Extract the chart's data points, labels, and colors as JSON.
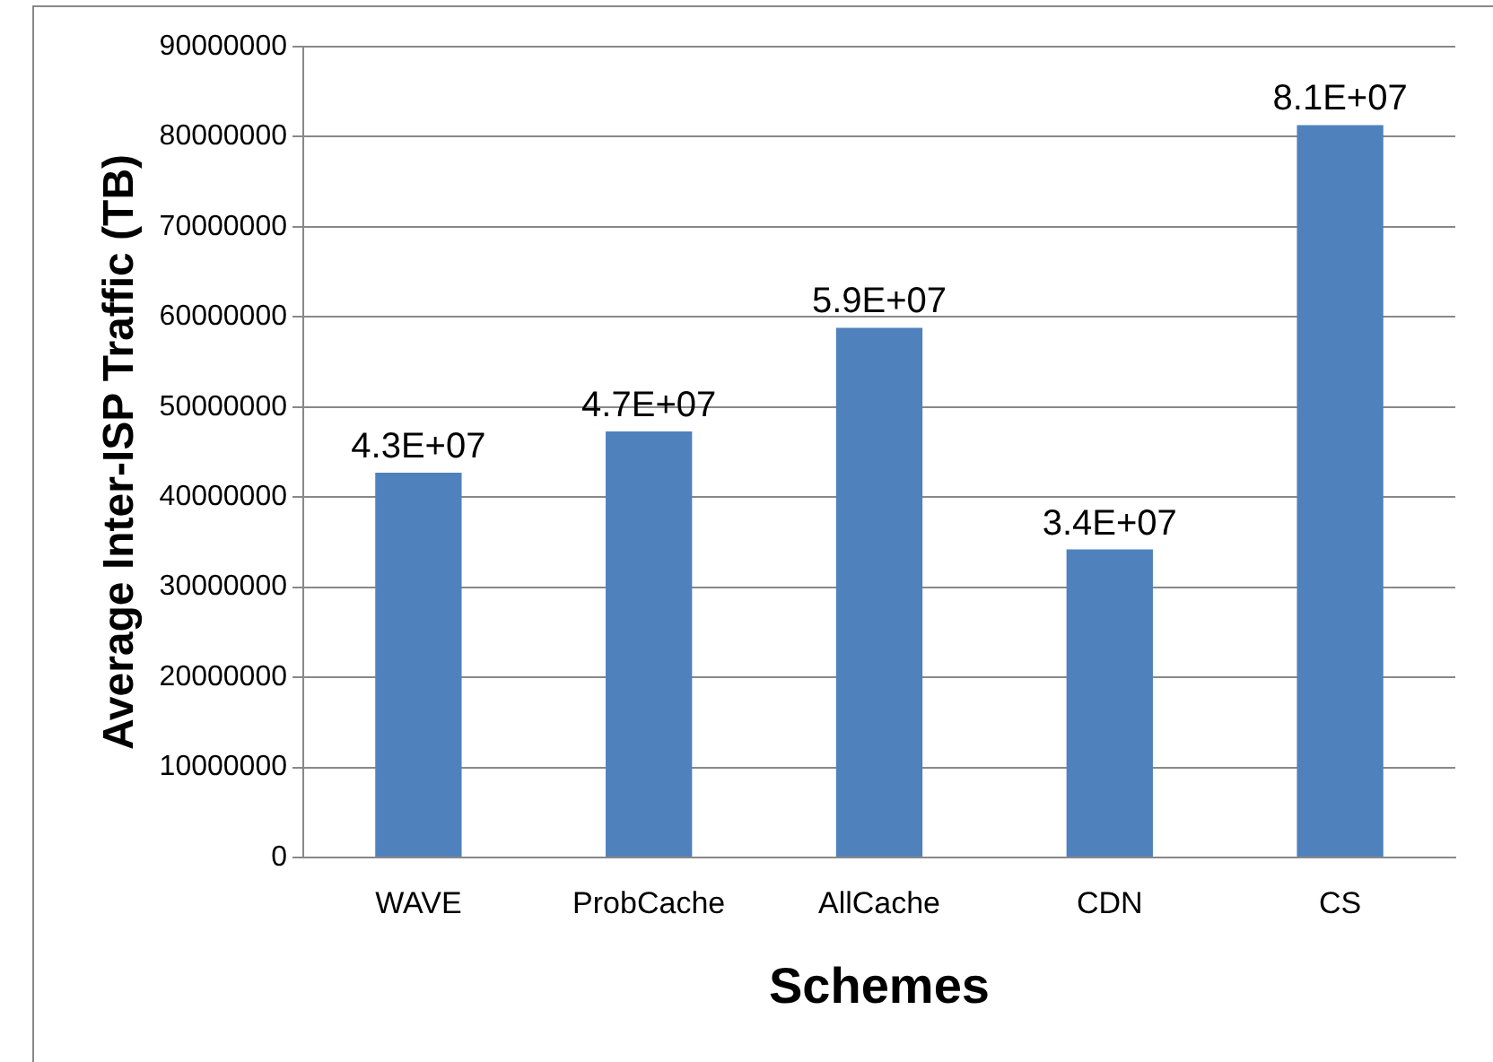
{
  "chart_data": {
    "type": "bar",
    "xlabel": "Schemes",
    "ylabel": "Average Inter-ISP Traffic (TB)",
    "categories": [
      "WAVE",
      "ProbCache",
      "AllCache",
      "CDN",
      "CS"
    ],
    "values": [
      42700000,
      47300000,
      58800000,
      34200000,
      81300000
    ],
    "value_labels": [
      "4.3E+07",
      "4.7E+07",
      "5.9E+07",
      "3.4E+07",
      "8.1E+07"
    ],
    "color": "#4f81bd",
    "ylim": [
      0,
      90000000
    ],
    "yticks": [
      0,
      10000000,
      20000000,
      30000000,
      40000000,
      50000000,
      60000000,
      70000000,
      80000000,
      90000000
    ],
    "grid": "y",
    "legend": false
  }
}
